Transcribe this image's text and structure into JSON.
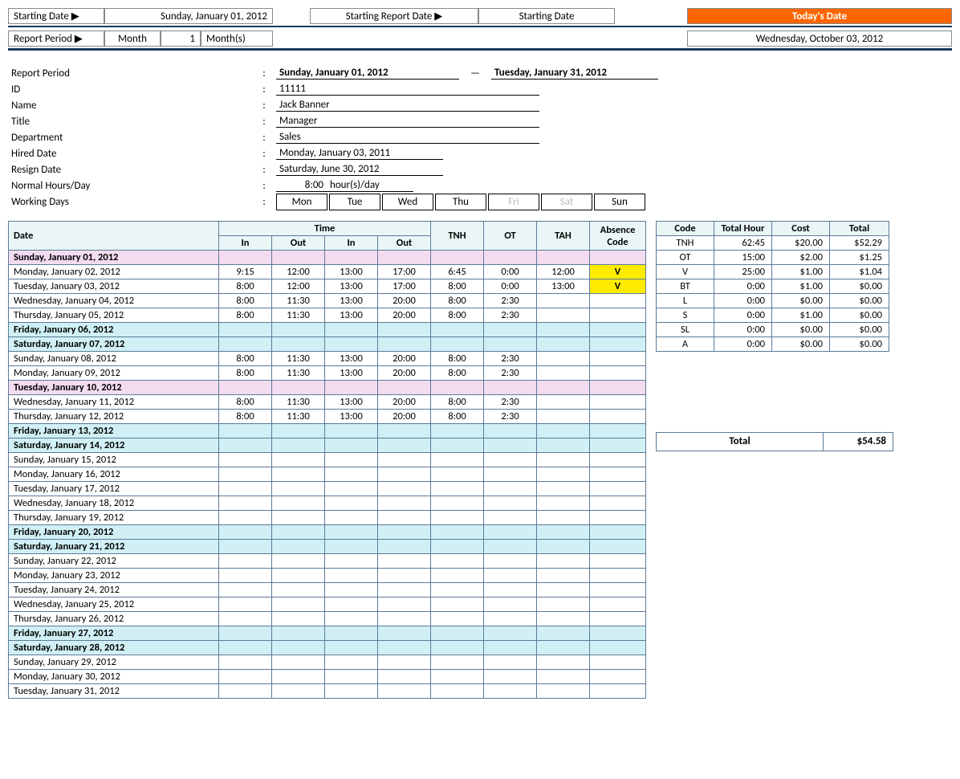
{
  "header": {
    "starting_date_label": "Starting Date ▶",
    "starting_date_value": "Sunday, January 01, 2012",
    "starting_report_date_label": "Starting Report Date ▶",
    "starting_report_date_value": "Starting Date",
    "todays_date_label": "Today's Date",
    "report_period_label": "Report Period ▶",
    "month_label": "Month",
    "month_value": "1",
    "months_label": "Month(s)",
    "todays_date_value": "Wednesday, October 03, 2012"
  },
  "info": {
    "report_period_label": "Report Period",
    "report_period_start": "Sunday, January 01, 2012",
    "report_period_sep": "—",
    "report_period_end": "Tuesday, January 31, 2012",
    "id_label": "ID",
    "id_value": "11111",
    "name_label": "Name",
    "name_value": "Jack Banner",
    "title_label": "Title",
    "title_value": "Manager",
    "department_label": "Department",
    "department_value": "Sales",
    "hired_label": "Hired Date",
    "hired_value": "Monday, January 03, 2011",
    "resign_label": "Resign Date",
    "resign_value": "Saturday, June 30, 2012",
    "hours_label": "Normal Hours/Day",
    "hours_value": "8:00",
    "hours_unit": "hour(s)/day",
    "working_days_label": "Working Days",
    "days": [
      "Mon",
      "Tue",
      "Wed",
      "Thu",
      "Fri",
      "Sat",
      "Sun"
    ],
    "days_off": [
      false,
      false,
      false,
      false,
      true,
      true,
      false
    ]
  },
  "main_table": {
    "headers": {
      "date": "Date",
      "time": "Time",
      "in": "In",
      "out": "Out",
      "tnh": "TNH",
      "ot": "OT",
      "tah": "TAH",
      "absence": "Absence Code"
    },
    "rows": [
      {
        "date": "Sunday, January 01, 2012",
        "style": "pink"
      },
      {
        "date": "Monday, January 02, 2012",
        "in1": "9:15",
        "out1": "12:00",
        "in2": "13:00",
        "out2": "17:00",
        "tnh": "6:45",
        "ot": "0:00",
        "tah": "12:00",
        "abs": "V",
        "abs_yellow": true
      },
      {
        "date": "Tuesday, January 03, 2012",
        "in1": "8:00",
        "out1": "12:00",
        "in2": "13:00",
        "out2": "17:00",
        "tnh": "8:00",
        "ot": "0:00",
        "tah": "13:00",
        "abs": "V",
        "abs_yellow": true
      },
      {
        "date": "Wednesday, January 04, 2012",
        "in1": "8:00",
        "out1": "11:30",
        "in2": "13:00",
        "out2": "20:00",
        "tnh": "8:00",
        "ot": "2:30"
      },
      {
        "date": "Thursday, January 05, 2012",
        "in1": "8:00",
        "out1": "11:30",
        "in2": "13:00",
        "out2": "20:00",
        "tnh": "8:00",
        "ot": "2:30"
      },
      {
        "date": "Friday, January 06, 2012",
        "style": "blue"
      },
      {
        "date": "Saturday, January 07, 2012",
        "style": "blue"
      },
      {
        "date": "Sunday, January 08, 2012",
        "in1": "8:00",
        "out1": "11:30",
        "in2": "13:00",
        "out2": "20:00",
        "tnh": "8:00",
        "ot": "2:30"
      },
      {
        "date": "Monday, January 09, 2012",
        "in1": "8:00",
        "out1": "11:30",
        "in2": "13:00",
        "out2": "20:00",
        "tnh": "8:00",
        "ot": "2:30"
      },
      {
        "date": "Tuesday, January 10, 2012",
        "style": "pink"
      },
      {
        "date": "Wednesday, January 11, 2012",
        "in1": "8:00",
        "out1": "11:30",
        "in2": "13:00",
        "out2": "20:00",
        "tnh": "8:00",
        "ot": "2:30"
      },
      {
        "date": "Thursday, January 12, 2012",
        "in1": "8:00",
        "out1": "11:30",
        "in2": "13:00",
        "out2": "20:00",
        "tnh": "8:00",
        "ot": "2:30"
      },
      {
        "date": "Friday, January 13, 2012",
        "style": "blue"
      },
      {
        "date": "Saturday, January 14, 2012",
        "style": "blue"
      },
      {
        "date": "Sunday, January 15, 2012"
      },
      {
        "date": "Monday, January 16, 2012"
      },
      {
        "date": "Tuesday, January 17, 2012"
      },
      {
        "date": "Wednesday, January 18, 2012"
      },
      {
        "date": "Thursday, January 19, 2012"
      },
      {
        "date": "Friday, January 20, 2012",
        "style": "blue"
      },
      {
        "date": "Saturday, January 21, 2012",
        "style": "blue"
      },
      {
        "date": "Sunday, January 22, 2012"
      },
      {
        "date": "Monday, January 23, 2012"
      },
      {
        "date": "Tuesday, January 24, 2012"
      },
      {
        "date": "Wednesday, January 25, 2012"
      },
      {
        "date": "Thursday, January 26, 2012"
      },
      {
        "date": "Friday, January 27, 2012",
        "style": "blue"
      },
      {
        "date": "Saturday, January 28, 2012",
        "style": "blue"
      },
      {
        "date": "Sunday, January 29, 2012"
      },
      {
        "date": "Monday, January 30, 2012"
      },
      {
        "date": "Tuesday, January 31, 2012"
      }
    ]
  },
  "summary_table": {
    "headers": {
      "code": "Code",
      "hour": "Total Hour",
      "cost": "Cost",
      "total": "Total"
    },
    "rows": [
      {
        "code": "TNH",
        "hour": "62:45",
        "cost": "$20.00",
        "total": "$52.29"
      },
      {
        "code": "OT",
        "hour": "15:00",
        "cost": "$2.00",
        "total": "$1.25"
      },
      {
        "code": "V",
        "hour": "25:00",
        "cost": "$1.00",
        "total": "$1.04"
      },
      {
        "code": "BT",
        "hour": "0:00",
        "cost": "$1.00",
        "total": "$0.00"
      },
      {
        "code": "L",
        "hour": "0:00",
        "cost": "$0.00",
        "total": "$0.00"
      },
      {
        "code": "S",
        "hour": "0:00",
        "cost": "$1.00",
        "total": "$0.00"
      },
      {
        "code": "SL",
        "hour": "0:00",
        "cost": "$0.00",
        "total": "$0.00"
      },
      {
        "code": "A",
        "hour": "0:00",
        "cost": "$0.00",
        "total": "$0.00"
      }
    ]
  },
  "grand_total": {
    "label": "Total",
    "value": "$54.58"
  },
  "colors": {
    "orange": "#ff6600",
    "header_bg": "#eaf6f6",
    "border": "#5b7a99",
    "pink": "#f4dcf0",
    "blue": "#d0f0f5",
    "yellow": "#ffeb00",
    "dark_line": "#1a3a5c"
  }
}
